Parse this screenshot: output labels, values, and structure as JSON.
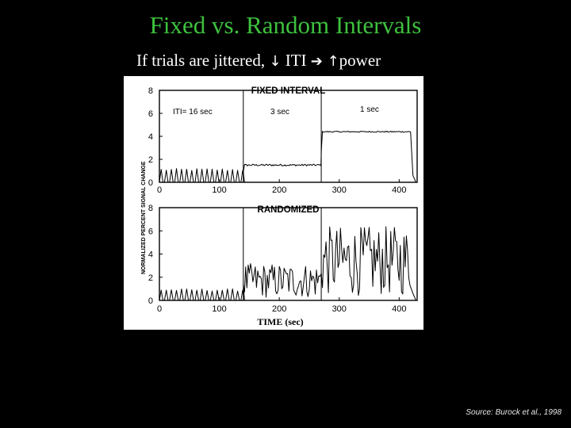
{
  "slide": {
    "title": "Fixed vs. Random Intervals",
    "subtitle_parts": [
      "If trials are jittered, ",
      "↓",
      " ITI ",
      "➔",
      " ↑",
      "power"
    ],
    "source": "Source: Burock et al., 1998"
  },
  "colors": {
    "background": "#000000",
    "title": "#3ec13e",
    "text": "#ffffff",
    "figure_bg": "#ffffff",
    "ink": "#000000"
  },
  "chart_data": [
    {
      "type": "line",
      "title": "FIXED INTERVAL",
      "ylabel": "NORMALIZED PERCENT SIGNAL CHANGE",
      "xlabel": "",
      "xlim": [
        0,
        430
      ],
      "ylim": [
        0,
        8
      ],
      "x_ticks": [
        "0",
        "100",
        "200",
        "300",
        "400"
      ],
      "y_ticks": [
        "0",
        "2",
        "4",
        "6",
        "8"
      ],
      "annotations": [
        "ITI= 16 sec",
        "3 sec",
        "1 sec"
      ],
      "dividers_x": [
        140,
        270
      ],
      "series": [
        {
          "segments": [
            {
              "kind": "spikes",
              "from": 0,
              "to": 140,
              "period": 8.5,
              "peak": 1.1,
              "base": 0
            },
            {
              "kind": "noisy",
              "from": 140,
              "to": 270,
              "mean": 1.5,
              "amp": 0.08
            },
            {
              "kind": "noisy",
              "from": 270,
              "to": 420,
              "mean": 4.4,
              "amp": 0.05
            },
            {
              "kind": "decay",
              "from": 420,
              "to": 430,
              "end": 0
            }
          ]
        }
      ]
    },
    {
      "type": "line",
      "title": "RANDOMIZED",
      "xlabel": "TIME (sec)",
      "ylabel": "",
      "xlim": [
        0,
        430
      ],
      "ylim": [
        0,
        8
      ],
      "x_ticks": [
        "0",
        "100",
        "200",
        "300",
        "400"
      ],
      "y_ticks": [
        "0",
        "2",
        "4",
        "6",
        "8"
      ],
      "dividers_x": [
        140,
        270
      ],
      "series": [
        {
          "segments": [
            {
              "kind": "spikes",
              "from": 0,
              "to": 140,
              "period": 8.5,
              "peak": 0.9,
              "base": 0
            },
            {
              "kind": "random",
              "from": 140,
              "to": 270,
              "mean": 1.7,
              "amp": 1.5
            },
            {
              "kind": "random",
              "from": 270,
              "to": 420,
              "mean": 3.4,
              "amp": 3.0
            },
            {
              "kind": "decay",
              "from": 420,
              "to": 430,
              "end": 0
            }
          ]
        }
      ]
    }
  ]
}
